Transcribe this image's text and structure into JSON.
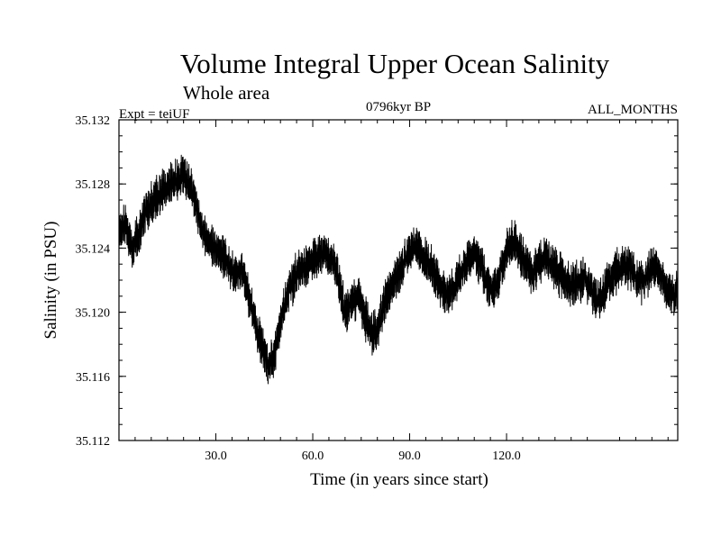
{
  "chart_data": {
    "type": "line",
    "title": "Volume Integral Upper Ocean Salinity",
    "subtitle": "Whole area",
    "experiment": "Expt = teiUF",
    "period": "0796kyr BP",
    "months": "ALL_MONTHS",
    "xlabel": "Time (in years since start)",
    "ylabel": "Salinity (in PSU)",
    "xlim": [
      0,
      173
    ],
    "ylim": [
      35.112,
      35.132
    ],
    "x_ticks": [
      30.0,
      60.0,
      90.0,
      120.0
    ],
    "x_tick_labels": [
      "30.0",
      "60.0",
      "90.0",
      "120.0"
    ],
    "y_ticks": [
      35.112,
      35.116,
      35.12,
      35.124,
      35.128,
      35.132
    ],
    "y_tick_labels": [
      "35.112",
      "35.116",
      "35.120",
      "35.124",
      "35.128",
      "35.132"
    ],
    "grid": false,
    "series": [
      {
        "name": "salinity",
        "x": [
          0,
          2,
          4,
          6,
          8,
          10,
          12,
          14,
          16,
          18,
          20,
          22,
          24,
          26,
          28,
          30,
          32,
          34,
          36,
          38,
          40,
          42,
          44,
          46,
          48,
          50,
          52,
          54,
          56,
          58,
          60,
          62,
          64,
          66,
          68,
          70,
          72,
          74,
          76,
          78,
          80,
          82,
          84,
          86,
          88,
          90,
          92,
          94,
          96,
          98,
          100,
          102,
          104,
          106,
          108,
          110,
          112,
          114,
          116,
          118,
          120,
          122,
          124,
          126,
          128,
          130,
          132,
          134,
          136,
          138,
          140,
          142,
          144,
          146,
          148,
          150,
          152,
          154,
          156,
          158,
          160,
          162,
          164,
          166,
          168,
          170,
          172,
          173
        ],
        "values": [
          35.125,
          35.1255,
          35.124,
          35.1248,
          35.1262,
          35.1268,
          35.1272,
          35.1276,
          35.128,
          35.1282,
          35.1285,
          35.1279,
          35.1266,
          35.125,
          35.1244,
          35.124,
          35.1236,
          35.123,
          35.1222,
          35.1226,
          35.1212,
          35.1195,
          35.118,
          35.1168,
          35.1172,
          35.1195,
          35.121,
          35.122,
          35.1225,
          35.1229,
          35.1232,
          35.1235,
          35.1238,
          35.1232,
          35.122,
          35.1198,
          35.1205,
          35.1212,
          35.1198,
          35.1186,
          35.119,
          35.1205,
          35.1215,
          35.1222,
          35.123,
          35.1238,
          35.1242,
          35.1236,
          35.123,
          35.1222,
          35.1214,
          35.121,
          35.1216,
          35.1225,
          35.1232,
          35.1236,
          35.123,
          35.1218,
          35.121,
          35.1226,
          35.1238,
          35.1244,
          35.1238,
          35.1229,
          35.1225,
          35.1231,
          35.1236,
          35.1229,
          35.1225,
          35.122,
          35.1216,
          35.1218,
          35.1222,
          35.1215,
          35.1208,
          35.1212,
          35.122,
          35.1225,
          35.123,
          35.1228,
          35.1222,
          35.1219,
          35.1224,
          35.1228,
          35.1222,
          35.1212,
          35.121,
          35.1218
        ]
      }
    ]
  }
}
